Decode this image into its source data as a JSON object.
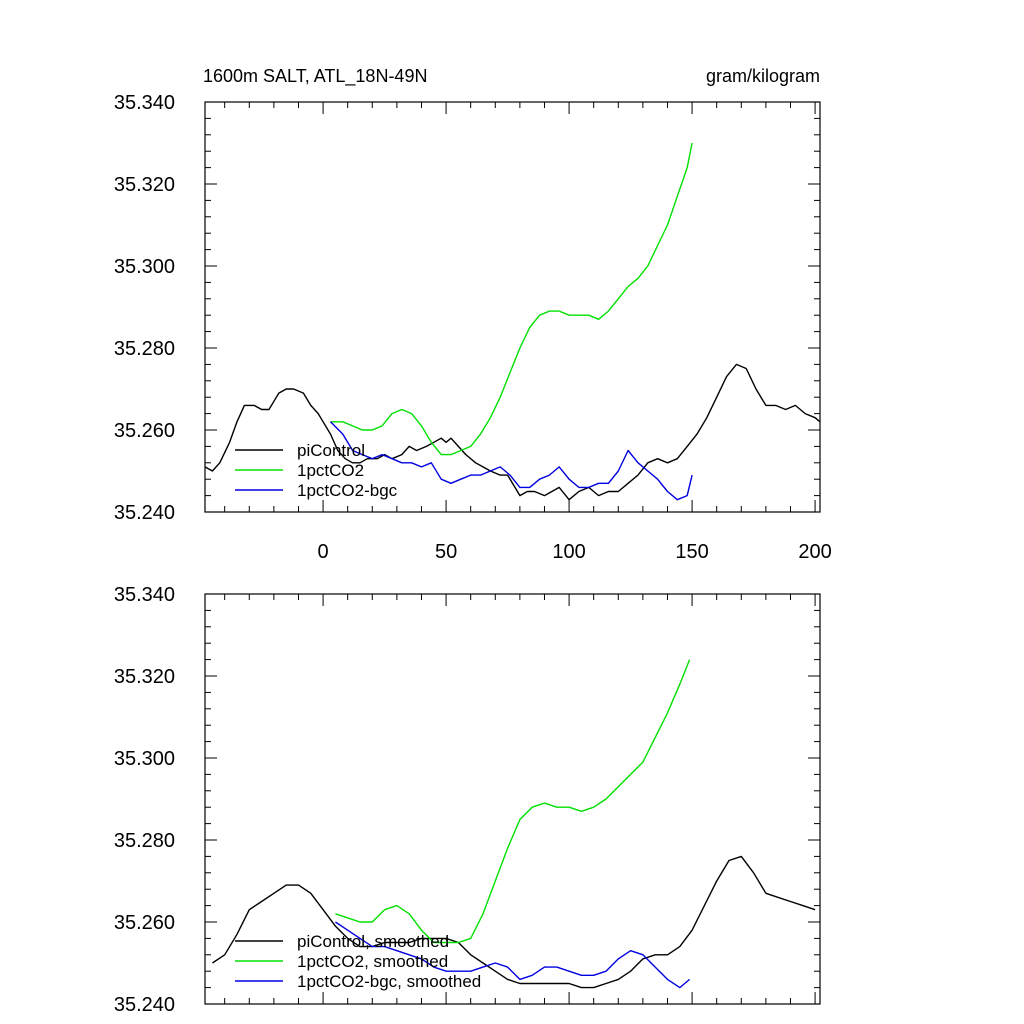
{
  "chart_data": [
    {
      "type": "line",
      "title": "1600m SALT, ATL_18N-49N",
      "units": "gram/kilogram",
      "xlabel": "",
      "ylabel": "",
      "xlim": [
        -48,
        202
      ],
      "ylim": [
        35.24,
        35.34
      ],
      "x_ticks": [
        0,
        50,
        100,
        150,
        200
      ],
      "x_tick_labels": [
        "0",
        "50",
        "100",
        "150",
        "200"
      ],
      "y_ticks": [
        35.24,
        35.26,
        35.28,
        35.3,
        35.32,
        35.34
      ],
      "y_tick_labels": [
        "35.240",
        "35.260",
        "35.280",
        "35.300",
        "35.320",
        "35.340"
      ],
      "grid": false,
      "legend_position": "bottom-left",
      "series": [
        {
          "name": "piControl",
          "color": "#000000",
          "x": [
            -48,
            -45,
            -42,
            -38,
            -35,
            -32,
            -28,
            -25,
            -22,
            -20,
            -18,
            -15,
            -12,
            -8,
            -5,
            -2,
            0,
            3,
            6,
            9,
            12,
            15,
            18,
            22,
            25,
            28,
            32,
            35,
            38,
            42,
            45,
            48,
            50,
            52,
            55,
            58,
            62,
            65,
            68,
            72,
            75,
            78,
            80,
            83,
            86,
            90,
            93,
            96,
            100,
            104,
            108,
            112,
            116,
            120,
            124,
            128,
            132,
            136,
            140,
            144,
            148,
            152,
            156,
            160,
            164,
            168,
            172,
            176,
            180,
            184,
            188,
            192,
            196,
            200,
            202
          ],
          "y": [
            35.251,
            35.25,
            35.252,
            35.257,
            35.262,
            35.266,
            35.266,
            35.265,
            35.265,
            35.267,
            35.269,
            35.27,
            35.27,
            35.269,
            35.266,
            35.264,
            35.262,
            35.259,
            35.255,
            35.253,
            35.252,
            35.252,
            35.253,
            35.253,
            35.254,
            35.253,
            35.254,
            35.256,
            35.255,
            35.256,
            35.257,
            35.258,
            35.257,
            35.258,
            35.256,
            35.254,
            35.252,
            35.251,
            35.25,
            35.249,
            35.249,
            35.246,
            35.244,
            35.245,
            35.245,
            35.244,
            35.245,
            35.246,
            35.243,
            35.245,
            35.246,
            35.244,
            35.245,
            35.245,
            35.247,
            35.249,
            35.252,
            35.253,
            35.252,
            35.253,
            35.256,
            35.259,
            35.263,
            35.268,
            35.273,
            35.276,
            35.275,
            35.27,
            35.266,
            35.266,
            35.265,
            35.266,
            35.264,
            35.263,
            35.262
          ]
        },
        {
          "name": "1pctCO2",
          "color": "#00e000",
          "x": [
            3,
            8,
            12,
            16,
            20,
            24,
            28,
            32,
            36,
            40,
            44,
            48,
            52,
            56,
            60,
            64,
            68,
            72,
            76,
            80,
            84,
            88,
            92,
            96,
            100,
            104,
            108,
            112,
            116,
            120,
            124,
            128,
            132,
            136,
            140,
            144,
            148,
            150
          ],
          "y": [
            35.262,
            35.262,
            35.261,
            35.26,
            35.26,
            35.261,
            35.264,
            35.265,
            35.264,
            35.261,
            35.257,
            35.254,
            35.254,
            35.255,
            35.256,
            35.259,
            35.263,
            35.268,
            35.274,
            35.28,
            35.285,
            35.288,
            35.289,
            35.289,
            35.288,
            35.288,
            35.288,
            35.287,
            35.289,
            35.292,
            35.295,
            35.297,
            35.3,
            35.305,
            35.31,
            35.317,
            35.324,
            35.33
          ]
        },
        {
          "name": "1pctCO2-bgc",
          "color": "#0000e0",
          "x": [
            3,
            8,
            12,
            16,
            20,
            24,
            28,
            32,
            36,
            40,
            44,
            48,
            52,
            56,
            60,
            64,
            68,
            72,
            76,
            80,
            84,
            88,
            92,
            96,
            100,
            104,
            108,
            112,
            116,
            120,
            124,
            128,
            132,
            136,
            140,
            144,
            148,
            150
          ],
          "y": [
            35.262,
            35.259,
            35.255,
            35.254,
            35.253,
            35.254,
            35.253,
            35.252,
            35.252,
            35.251,
            35.252,
            35.248,
            35.247,
            35.248,
            35.249,
            35.249,
            35.25,
            35.251,
            35.249,
            35.246,
            35.246,
            35.248,
            35.249,
            35.251,
            35.248,
            35.246,
            35.246,
            35.247,
            35.247,
            35.25,
            35.255,
            35.252,
            35.25,
            35.248,
            35.245,
            35.243,
            35.244,
            35.249
          ]
        }
      ]
    },
    {
      "type": "line",
      "title": "",
      "units": "",
      "xlabel": "",
      "ylabel": "",
      "xlim": [
        -48,
        202
      ],
      "ylim": [
        35.24,
        35.34
      ],
      "x_ticks": [
        0,
        50,
        100,
        150,
        200
      ],
      "x_tick_labels": [],
      "y_ticks": [
        35.24,
        35.26,
        35.28,
        35.3,
        35.32,
        35.34
      ],
      "y_tick_labels": [
        "35.240",
        "35.260",
        "35.280",
        "35.300",
        "35.320",
        "35.340"
      ],
      "grid": false,
      "legend_position": "bottom-left",
      "series": [
        {
          "name": "piControl, smoothed",
          "color": "#000000",
          "x": [
            -45,
            -40,
            -35,
            -30,
            -25,
            -20,
            -15,
            -10,
            -5,
            0,
            5,
            10,
            15,
            20,
            25,
            30,
            35,
            40,
            45,
            50,
            55,
            60,
            65,
            70,
            75,
            80,
            85,
            90,
            95,
            100,
            105,
            110,
            115,
            120,
            125,
            130,
            135,
            140,
            145,
            150,
            155,
            160,
            165,
            170,
            175,
            180,
            185,
            190,
            195,
            200
          ],
          "y": [
            35.25,
            35.252,
            35.257,
            35.263,
            35.265,
            35.267,
            35.269,
            35.269,
            35.267,
            35.263,
            35.259,
            35.256,
            35.254,
            35.254,
            35.255,
            35.255,
            35.255,
            35.256,
            35.256,
            35.256,
            35.255,
            35.252,
            35.25,
            35.248,
            35.246,
            35.245,
            35.245,
            35.245,
            35.245,
            35.245,
            35.244,
            35.244,
            35.245,
            35.246,
            35.248,
            35.251,
            35.252,
            35.252,
            35.254,
            35.258,
            35.264,
            35.27,
            35.275,
            35.276,
            35.272,
            35.267,
            35.266,
            35.265,
            35.264,
            35.263
          ]
        },
        {
          "name": "1pctCO2, smoothed",
          "color": "#00e000",
          "x": [
            5,
            10,
            15,
            20,
            25,
            30,
            35,
            40,
            45,
            50,
            55,
            60,
            65,
            70,
            75,
            80,
            85,
            90,
            95,
            100,
            105,
            110,
            115,
            120,
            125,
            130,
            135,
            140,
            145,
            149
          ],
          "y": [
            35.262,
            35.261,
            35.26,
            35.26,
            35.263,
            35.264,
            35.262,
            35.258,
            35.255,
            35.255,
            35.255,
            35.256,
            35.262,
            35.27,
            35.278,
            35.285,
            35.288,
            35.289,
            35.288,
            35.288,
            35.287,
            35.288,
            35.29,
            35.293,
            35.296,
            35.299,
            35.305,
            35.311,
            35.318,
            35.324
          ]
        },
        {
          "name": "1pctCO2-bgc, smoothed",
          "color": "#0000e0",
          "x": [
            5,
            10,
            15,
            20,
            25,
            30,
            35,
            40,
            45,
            50,
            55,
            60,
            65,
            70,
            75,
            80,
            85,
            90,
            95,
            100,
            105,
            110,
            115,
            120,
            125,
            130,
            135,
            140,
            145,
            149
          ],
          "y": [
            35.26,
            35.258,
            35.256,
            35.254,
            35.254,
            35.253,
            35.252,
            35.251,
            35.249,
            35.248,
            35.248,
            35.248,
            35.249,
            35.25,
            35.249,
            35.246,
            35.247,
            35.249,
            35.249,
            35.248,
            35.247,
            35.247,
            35.248,
            35.251,
            35.253,
            35.252,
            35.249,
            35.246,
            35.244,
            35.246
          ]
        }
      ]
    }
  ]
}
